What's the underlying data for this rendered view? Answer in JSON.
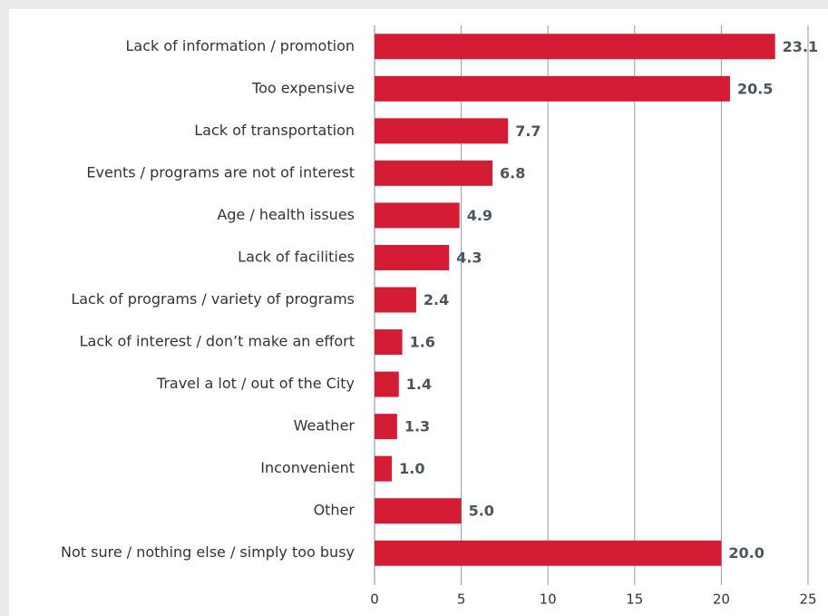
{
  "chart_data": {
    "type": "bar",
    "orientation": "horizontal",
    "categories": [
      "Lack of information / promotion",
      "Too expensive",
      "Lack of transportation",
      "Events / programs are not of interest",
      "Age / health issues",
      "Lack of facilities",
      "Lack of programs / variety of programs",
      "Lack of interest / don’t make an effort",
      "Travel a lot / out of the City",
      "Weather",
      "Inconvenient",
      "Other",
      "Not sure / nothing else / simply too busy"
    ],
    "values": [
      23.1,
      20.5,
      7.7,
      6.8,
      4.9,
      4.3,
      2.4,
      1.6,
      1.4,
      1.3,
      1.0,
      5.0,
      20.0
    ],
    "value_labels": [
      "23.1",
      "20.5",
      "7.7",
      "6.8",
      "4.9",
      "4.3",
      "2.4",
      "1.6",
      "1.4",
      "1.3",
      "1.0",
      "5.0",
      "20.0"
    ],
    "color": "#d51c35",
    "xlim": [
      0,
      25
    ],
    "xticks": [
      0,
      5,
      10,
      15,
      20,
      25
    ],
    "grid": true
  }
}
